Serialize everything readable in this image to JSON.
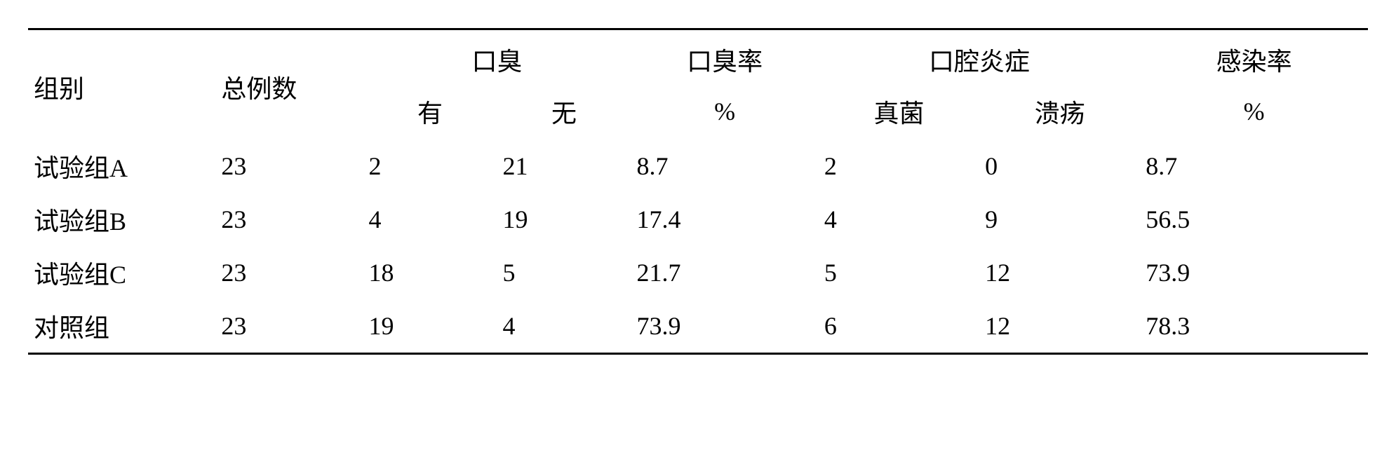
{
  "table": {
    "headers": {
      "group": "组别",
      "total": "总例数",
      "halitosis": "口臭",
      "halitosis_rate": "口臭率",
      "oral_inflammation": "口腔炎症",
      "infection_rate": "感染率"
    },
    "subheaders": {
      "has": "有",
      "none": "无",
      "percent1": "%",
      "fungus": "真菌",
      "ulcer": "溃疡",
      "percent2": "%"
    },
    "rows": [
      {
        "group": "试验组A",
        "total": "23",
        "has": "2",
        "none": "21",
        "rate": "8.7",
        "fungus": "2",
        "ulcer": "0",
        "infrate": "8.7"
      },
      {
        "group": "试验组B",
        "total": "23",
        "has": "4",
        "none": "19",
        "rate": "17.4",
        "fungus": "4",
        "ulcer": "9",
        "infrate": "56.5"
      },
      {
        "group": "试验组C",
        "total": "23",
        "has": "18",
        "none": "5",
        "rate": "21.7",
        "fungus": "5",
        "ulcer": "12",
        "infrate": "73.9"
      },
      {
        "group": "对照组",
        "total": "23",
        "has": "19",
        "none": "4",
        "rate": "73.9",
        "fungus": "6",
        "ulcer": "12",
        "infrate": "78.3"
      }
    ],
    "column_widths": [
      "14%",
      "11%",
      "10%",
      "10%",
      "14%",
      "12%",
      "12%",
      "17%"
    ]
  }
}
